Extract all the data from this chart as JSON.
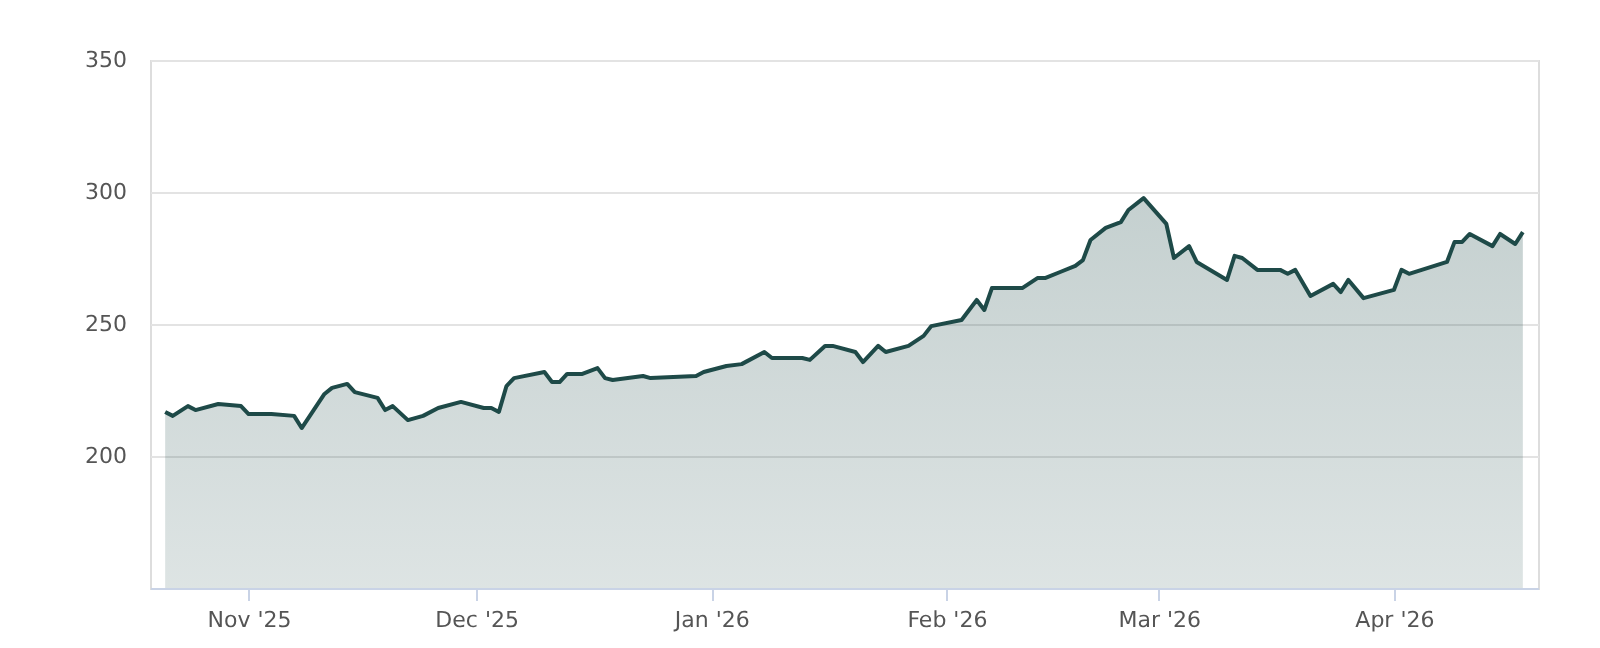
{
  "chart_data": {
    "type": "area",
    "x": [
      "2025-10-21",
      "2025-10-22",
      "2025-10-24",
      "2025-10-25",
      "2025-10-28",
      "2025-10-31",
      "2025-11-01",
      "2025-11-04",
      "2025-11-07",
      "2025-11-08",
      "2025-11-11",
      "2025-11-12",
      "2025-11-14",
      "2025-11-15",
      "2025-11-18",
      "2025-11-19",
      "2025-11-20",
      "2025-11-22",
      "2025-11-24",
      "2025-11-26",
      "2025-11-29",
      "2025-12-02",
      "2025-12-03",
      "2025-12-04",
      "2025-12-05",
      "2025-12-06",
      "2025-12-10",
      "2025-12-11",
      "2025-12-12",
      "2025-12-13",
      "2025-12-15",
      "2025-12-17",
      "2025-12-18",
      "2025-12-19",
      "2025-12-23",
      "2025-12-24",
      "2025-12-30",
      "2025-12-31",
      "2026-01-03",
      "2026-01-05",
      "2026-01-08",
      "2026-01-09",
      "2026-01-13",
      "2026-01-14",
      "2026-01-16",
      "2026-01-17",
      "2026-01-20",
      "2026-01-21",
      "2026-01-23",
      "2026-01-24",
      "2026-01-27",
      "2026-01-29",
      "2026-01-30",
      "2026-02-03",
      "2026-02-05",
      "2026-02-06",
      "2026-02-07",
      "2026-02-11",
      "2026-02-13",
      "2026-02-14",
      "2026-02-16",
      "2026-02-18",
      "2026-02-19",
      "2026-02-20",
      "2026-02-22",
      "2026-02-24",
      "2026-02-25",
      "2026-02-27",
      "2026-03-02",
      "2026-03-03",
      "2026-03-05",
      "2026-03-06",
      "2026-03-10",
      "2026-03-11",
      "2026-03-12",
      "2026-03-14",
      "2026-03-17",
      "2026-03-18",
      "2026-03-19",
      "2026-03-21",
      "2026-03-24",
      "2026-03-25",
      "2026-03-26",
      "2026-03-28",
      "2026-04-01",
      "2026-04-02",
      "2026-04-03",
      "2026-04-08",
      "2026-04-09",
      "2026-04-10",
      "2026-04-11",
      "2026-04-14",
      "2026-04-15",
      "2026-04-17",
      "2026-04-18"
    ],
    "series": [
      {
        "color": "#1e4a48",
        "values": [
          216.7,
          215.2,
          218.9,
          217.4,
          219.7,
          218.9,
          215.9,
          215.9,
          215.2,
          210.6,
          223.5,
          225.8,
          227.3,
          224.2,
          222.0,
          217.4,
          218.9,
          213.6,
          215.2,
          218.2,
          220.5,
          218.2,
          218.2,
          216.7,
          226.5,
          229.5,
          231.8,
          228.0,
          228.0,
          231.1,
          231.1,
          233.3,
          229.5,
          228.8,
          230.3,
          229.5,
          230.3,
          231.8,
          234.1,
          234.8,
          239.4,
          237.1,
          237.1,
          236.4,
          241.7,
          241.7,
          239.4,
          235.6,
          241.7,
          239.4,
          241.7,
          245.5,
          249.2,
          251.5,
          259.1,
          255.3,
          263.6,
          263.6,
          267.4,
          267.4,
          269.7,
          272.0,
          274.2,
          281.8,
          286.4,
          288.6,
          293.2,
          297.7,
          287.9,
          275.0,
          279.5,
          273.5,
          266.7,
          275.8,
          275.0,
          270.5,
          270.5,
          269.0,
          270.5,
          260.6,
          265.2,
          262.1,
          266.7,
          259.8,
          262.9,
          270.5,
          269.0,
          273.5,
          281.1,
          281.1,
          284.1,
          279.5,
          284.1,
          280.3,
          284.8
        ]
      }
    ],
    "xlim": [
      "2025-10-19",
      "2026-04-20"
    ],
    "xticks": [
      {
        "value": "2025-11-01",
        "label": "Nov '25"
      },
      {
        "value": "2025-12-01",
        "label": "Dec '25"
      },
      {
        "value": "2026-01-01",
        "label": "Jan '26"
      },
      {
        "value": "2026-02-01",
        "label": "Feb '26"
      },
      {
        "value": "2026-03-01",
        "label": "Mar '26"
      },
      {
        "value": "2026-04-01",
        "label": "Apr '26"
      }
    ],
    "ylim": [
      150,
      350
    ],
    "yticks": [
      200,
      250,
      300,
      350
    ],
    "grid": "y"
  }
}
